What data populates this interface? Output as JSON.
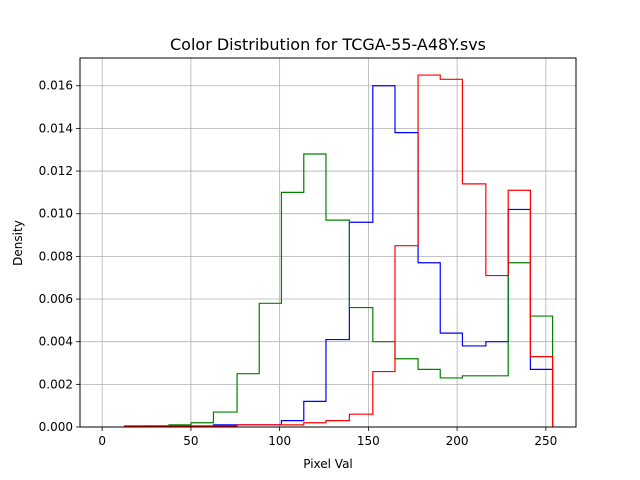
{
  "chart_data": {
    "type": "line",
    "title": "Color Distribution for TCGA-55-A48Y.svs",
    "xlabel": "Pixel Val",
    "ylabel": "Density",
    "xlim": [
      -12.5,
      267
    ],
    "ylim": [
      0,
      0.0173
    ],
    "xticks": [
      0,
      50,
      100,
      150,
      200,
      250
    ],
    "xtick_labels": [
      "0",
      "50",
      "100",
      "150",
      "200",
      "250"
    ],
    "yticks": [
      0,
      0.002,
      0.004,
      0.006,
      0.008,
      0.01,
      0.012,
      0.014,
      0.016
    ],
    "ytick_labels": [
      "0.000",
      "0.002",
      "0.004",
      "0.006",
      "0.008",
      "0.010",
      "0.012",
      "0.014",
      "0.016"
    ],
    "grid": true,
    "legend": "none",
    "histtype": "step",
    "bin_edges": [
      12.6,
      25.0,
      37.6,
      50.1,
      62.7,
      76.0,
      88.5,
      101.0,
      113.6,
      126.1,
      139.3,
      152.5,
      165.0,
      178.0,
      190.5,
      203.0,
      216.2,
      228.8,
      241.3,
      253.8
    ],
    "series": [
      {
        "color": "#0000ff",
        "values": [
          5e-05,
          5e-05,
          5e-05,
          5e-05,
          0.0001,
          0.0001,
          0.0001,
          0.0003,
          0.0012,
          0.0041,
          0.0096,
          0.016,
          0.0138,
          0.0077,
          0.0044,
          0.0038,
          0.004,
          0.0102,
          0.0027
        ]
      },
      {
        "color": "#008000",
        "values": [
          3e-05,
          5e-05,
          0.0001,
          0.0002,
          0.0007,
          0.0025,
          0.0058,
          0.011,
          0.0128,
          0.0097,
          0.0056,
          0.004,
          0.0032,
          0.0027,
          0.0023,
          0.0024,
          0.0024,
          0.0077,
          0.0052
        ]
      },
      {
        "color": "#ff0000",
        "values": [
          5e-05,
          5e-05,
          5e-05,
          5e-05,
          5e-05,
          0.0001,
          0.0001,
          0.0001,
          0.0002,
          0.0003,
          0.0006,
          0.0026,
          0.0085,
          0.0165,
          0.0163,
          0.0114,
          0.0071,
          0.0111,
          0.0033
        ]
      }
    ]
  }
}
